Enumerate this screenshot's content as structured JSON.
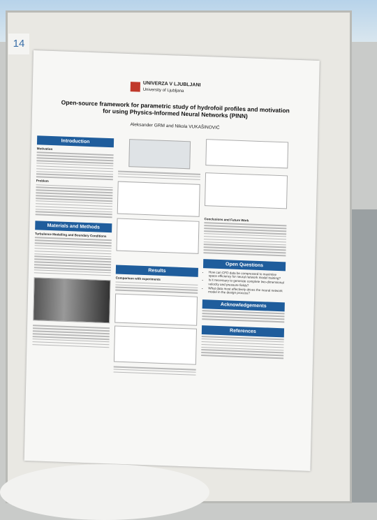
{
  "board_number": "14",
  "header": {
    "university": "UNIVERZA V LJUBLJANI",
    "university_en": "University of Ljubljana",
    "title": "Open-source framework for parametric study of hydrofoil profiles and motivation for using Physics-Informed Neural Networks (PINN)",
    "authors": "Aleksander GRM and Nikola VUKAŠINOVIĆ"
  },
  "sections": {
    "introduction": "Introduction",
    "motivation": "Motivation",
    "problem": "Problem",
    "materials": "Materials and Methods",
    "turbulence": "Turbulence Modelling and Boundary Conditions",
    "results": "Results",
    "comparison": "Comparison with experiments",
    "conclusions": "Conclusions and Future Work",
    "open_questions": "Open Questions",
    "acknowledgements": "Acknowledgements",
    "references": "References"
  },
  "open_questions": [
    "How can CFD data be compressed to maximise space efficiency for neural network model training?",
    "Is it necessary to generate complete two-dimensional velocity and pressure fields?",
    "What data most effectively drives the neural network model in the design process?"
  ]
}
